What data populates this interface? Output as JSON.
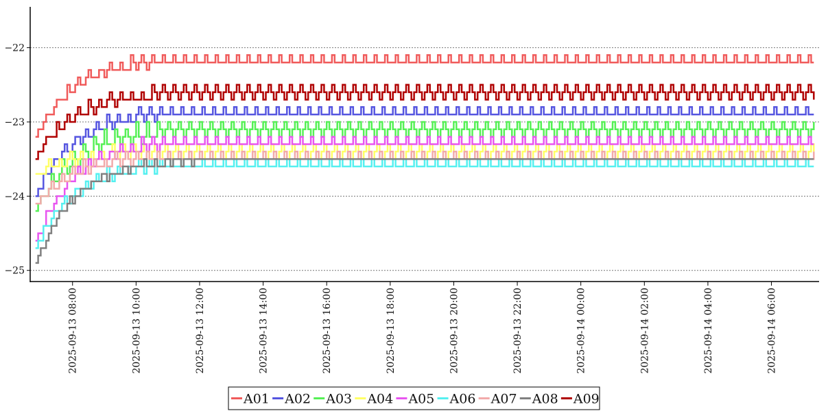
{
  "chart_data": {
    "type": "line",
    "title": "",
    "xlabel": "",
    "ylabel": "",
    "x_range": [
      "2025-09-13 06:40",
      "2025-09-14 07:30"
    ],
    "ylim": [
      -25.15,
      -21.45
    ],
    "y_ticks": [
      -25,
      -24,
      -23,
      -22
    ],
    "y_tick_labels": [
      "−25",
      "−24",
      "−23",
      "−22"
    ],
    "x_ticks": [
      "2025-09-13 08:00",
      "2025-09-13 10:00",
      "2025-09-13 12:00",
      "2025-09-13 14:00",
      "2025-09-13 16:00",
      "2025-09-13 18:00",
      "2025-09-13 20:00",
      "2025-09-13 22:00",
      "2025-09-14 00:00",
      "2025-09-14 02:00",
      "2025-09-14 04:00",
      "2025-09-14 06:00"
    ],
    "x_tick_labels": [
      "2025-09-13 08:00",
      "2025-09-13 10:00",
      "2025-09-13 12:00",
      "2025-09-13 14:00",
      "2025-09-13 16:00",
      "2025-09-13 18:00",
      "2025-09-13 20:00",
      "2025-09-13 22:00",
      "2025-09-14 00:00",
      "2025-09-14 02:00",
      "2025-09-14 04:00",
      "2025-09-14 06:00"
    ],
    "grid": "horizontal dotted",
    "legend_position": "bottom-center",
    "series_start": "2025-09-13 06:50",
    "series_end": "2025-09-14 07:20",
    "series_step_minutes": 5,
    "series": [
      {
        "name": "A01",
        "color": "#f05a5a",
        "start": -23.2,
        "settle": -22.15,
        "oscillation": 0.1
      },
      {
        "name": "A02",
        "color": "#5555e0",
        "start": -24.0,
        "settle": -22.85,
        "oscillation": 0.1
      },
      {
        "name": "A03",
        "color": "#55f055",
        "start": -24.2,
        "settle": -23.1,
        "oscillation": 0.15
      },
      {
        "name": "A04",
        "color": "#ffff66",
        "start": -23.7,
        "settle": -23.4,
        "oscillation": 0.1
      },
      {
        "name": "A05",
        "color": "#e855f0",
        "start": -24.6,
        "settle": -23.25,
        "oscillation": 0.1
      },
      {
        "name": "A06",
        "color": "#55f0f0",
        "start": -24.7,
        "settle": -23.55,
        "oscillation": 0.1
      },
      {
        "name": "A07",
        "color": "#f2aaaa",
        "start": -24.1,
        "settle": -23.45,
        "oscillation": 0.1
      },
      {
        "name": "A08",
        "color": "#808080",
        "start": -24.9,
        "settle": -23.5,
        "oscillation": 0.05
      },
      {
        "name": "A09",
        "color": "#b00000",
        "start": -23.5,
        "settle": -22.6,
        "oscillation": 0.1
      }
    ]
  }
}
